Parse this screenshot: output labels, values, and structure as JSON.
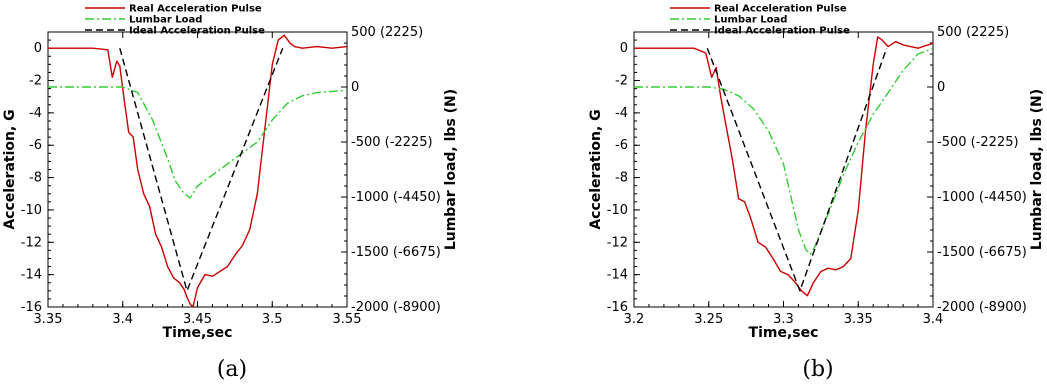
{
  "chart_data": [
    {
      "type": "line",
      "caption": "(a)",
      "xlabel": "Time,sec",
      "ylabel": "Acceleration, G",
      "y2label": "Lumbar load, lbs (N)",
      "xlim": [
        3.35,
        3.55
      ],
      "ylim": [
        -16,
        1
      ],
      "y2lim": [
        -2000,
        500
      ],
      "xticks": [
        "3.35",
        "3.4",
        "3.45",
        "3.5",
        "3.55"
      ],
      "xtick_values": [
        3.35,
        3.4,
        3.45,
        3.5,
        3.55
      ],
      "yticks": [
        "0",
        "-2",
        "-4",
        "-6",
        "-8",
        "-10",
        "-12",
        "-14",
        "-16"
      ],
      "ytick_values": [
        0,
        -2,
        -4,
        -6,
        -8,
        -10,
        -12,
        -14,
        -16
      ],
      "y2ticks": [
        "500 (2225)",
        "0",
        "-500 (-2225)",
        "-1000 (-4450)",
        "-1500 (-6675)",
        "-2000 (-8900)"
      ],
      "y2tick_values": [
        500,
        0,
        -500,
        -1000,
        -1500,
        -2000
      ],
      "legend_position": "top-left",
      "series": [
        {
          "name": "Real Acceleration Pulse",
          "axis": "left",
          "color": "#cc0000",
          "style": "solid",
          "x": [
            3.35,
            3.38,
            3.39,
            3.393,
            3.396,
            3.398,
            3.401,
            3.404,
            3.407,
            3.41,
            3.414,
            3.418,
            3.422,
            3.426,
            3.43,
            3.434,
            3.438,
            3.441,
            3.443,
            3.445,
            3.447,
            3.45,
            3.455,
            3.46,
            3.465,
            3.47,
            3.475,
            3.48,
            3.485,
            3.49,
            3.495,
            3.5,
            3.504,
            3.508,
            3.512,
            3.515,
            3.52,
            3.53,
            3.54,
            3.55
          ],
          "values": [
            0,
            0,
            -0.1,
            -1.8,
            -0.8,
            -1.1,
            -3.2,
            -5.2,
            -5.5,
            -7.5,
            -9.0,
            -9.8,
            -11.5,
            -12.3,
            -13.5,
            -14.2,
            -14.5,
            -14.9,
            -15.4,
            -15.8,
            -16.0,
            -14.8,
            -14.0,
            -14.1,
            -13.8,
            -13.5,
            -12.8,
            -12.2,
            -11.2,
            -9.0,
            -5.0,
            -1.0,
            0.5,
            0.8,
            0.3,
            0.1,
            0.0,
            0.1,
            0.0,
            0.1
          ]
        },
        {
          "name": "Lumbar Load",
          "axis": "right",
          "color": "#33cc33",
          "style": "dashdot",
          "x": [
            3.35,
            3.38,
            3.39,
            3.4,
            3.41,
            3.42,
            3.43,
            3.435,
            3.44,
            3.445,
            3.45,
            3.46,
            3.47,
            3.48,
            3.49,
            3.5,
            3.51,
            3.52,
            3.53,
            3.54,
            3.55
          ],
          "values": [
            0,
            0,
            0,
            0,
            -50,
            -300,
            -650,
            -850,
            -950,
            -1010,
            -900,
            -800,
            -700,
            -600,
            -500,
            -300,
            -150,
            -80,
            -50,
            -40,
            -30
          ]
        },
        {
          "name": "Ideal Acceleration Pulse",
          "axis": "left",
          "color": "#000000",
          "style": "dashed",
          "x": [
            3.398,
            3.443,
            3.507
          ],
          "values": [
            0,
            -15,
            0
          ]
        }
      ]
    },
    {
      "type": "line",
      "caption": "(b)",
      "xlabel": "Time,sec",
      "ylabel": "Acceleration, G",
      "y2label": "Lumbar load, lbs (N)",
      "xlim": [
        3.2,
        3.4
      ],
      "ylim": [
        -16,
        1
      ],
      "y2lim": [
        -2000,
        500
      ],
      "xticks": [
        "3.2",
        "3.25",
        "3.3",
        "3.35",
        "3.4"
      ],
      "xtick_values": [
        3.2,
        3.25,
        3.3,
        3.35,
        3.4
      ],
      "yticks": [
        "0",
        "-2",
        "-4",
        "-6",
        "-8",
        "-10",
        "-12",
        "-14",
        "-16"
      ],
      "ytick_values": [
        0,
        -2,
        -4,
        -6,
        -8,
        -10,
        -12,
        -14,
        -16
      ],
      "y2ticks": [
        "500 (2225)",
        "0",
        "-500 (-2225)",
        "-1000 (-4450)",
        "-1500 (-6675)",
        "-2000 (-8900)"
      ],
      "y2tick_values": [
        500,
        0,
        -500,
        -1000,
        -1500,
        -2000
      ],
      "legend_position": "top-left",
      "series": [
        {
          "name": "Real Acceleration Pulse",
          "axis": "left",
          "color": "#cc0000",
          "style": "solid",
          "x": [
            3.2,
            3.24,
            3.248,
            3.252,
            3.255,
            3.258,
            3.262,
            3.266,
            3.27,
            3.274,
            3.278,
            3.283,
            3.288,
            3.293,
            3.298,
            3.303,
            3.308,
            3.312,
            3.316,
            3.32,
            3.325,
            3.33,
            3.335,
            3.34,
            3.345,
            3.35,
            3.355,
            3.36,
            3.363,
            3.366,
            3.37,
            3.375,
            3.38,
            3.39,
            3.4
          ],
          "values": [
            0,
            0,
            -0.3,
            -1.8,
            -1.2,
            -3.0,
            -5.0,
            -7.0,
            -9.3,
            -9.5,
            -10.5,
            -12.0,
            -12.3,
            -13.0,
            -13.8,
            -14.0,
            -14.5,
            -15.0,
            -15.3,
            -14.5,
            -13.8,
            -13.6,
            -13.7,
            -13.5,
            -13.0,
            -10.0,
            -5.0,
            -1.0,
            0.7,
            0.5,
            0.1,
            0.4,
            0.2,
            0.0,
            0.3
          ]
        },
        {
          "name": "Lumbar Load",
          "axis": "right",
          "color": "#33cc33",
          "style": "dashdot",
          "x": [
            3.2,
            3.24,
            3.25,
            3.26,
            3.27,
            3.28,
            3.29,
            3.3,
            3.305,
            3.31,
            3.315,
            3.318,
            3.32,
            3.33,
            3.34,
            3.35,
            3.36,
            3.37,
            3.38,
            3.39,
            3.4
          ],
          "values": [
            0,
            0,
            0,
            -20,
            -80,
            -200,
            -400,
            -700,
            -1000,
            -1300,
            -1480,
            -1520,
            -1480,
            -1150,
            -800,
            -500,
            -250,
            -50,
            150,
            300,
            350
          ]
        },
        {
          "name": "Ideal Acceleration Pulse",
          "axis": "left",
          "color": "#000000",
          "style": "dashed",
          "x": [
            3.249,
            3.311,
            3.369
          ],
          "values": [
            0,
            -15,
            0
          ]
        }
      ]
    }
  ]
}
